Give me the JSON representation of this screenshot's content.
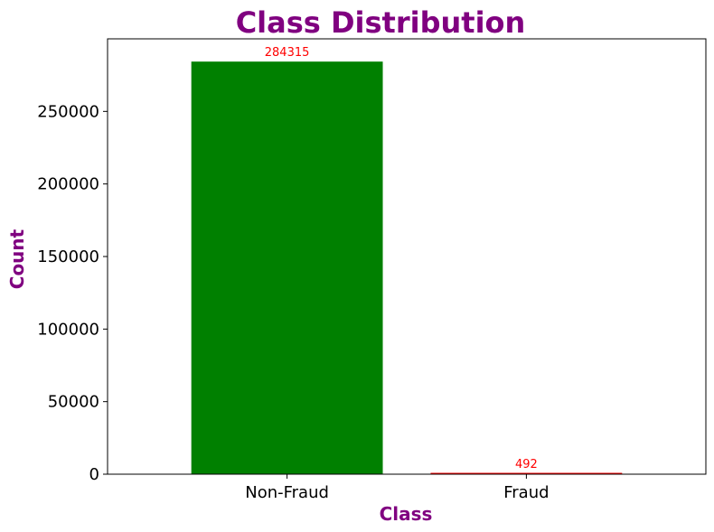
{
  "chart_data": {
    "type": "bar",
    "title": "Class Distribution",
    "xlabel": "Class",
    "ylabel": "Count",
    "categories": [
      "Non-Fraud",
      "Fraud"
    ],
    "values": [
      284315,
      492
    ],
    "data_labels": [
      "284315",
      "492"
    ],
    "bar_colors": [
      "#008000",
      "#ff0000"
    ],
    "ylim": [
      0,
      300000
    ],
    "yticks": [
      0,
      50000,
      100000,
      150000,
      200000,
      250000
    ],
    "ytick_labels": [
      "0",
      "50000",
      "100000",
      "150000",
      "200000",
      "250000"
    ],
    "grid": false,
    "legend": "none",
    "title_color": "#800080",
    "axis_label_color": "#800080",
    "data_label_color": "#ff0000"
  }
}
